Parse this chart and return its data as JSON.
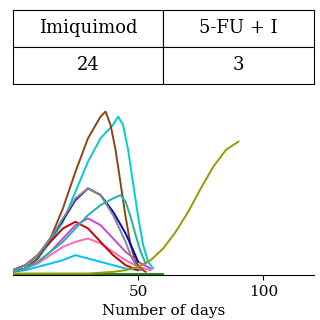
{
  "xlabel": "Number of days",
  "xlim": [
    0,
    120
  ],
  "ylim": [
    0,
    1.05
  ],
  "xticks": [
    50,
    100
  ],
  "lines": [
    {
      "color": "#FF8C00",
      "points": [
        [
          0,
          0.01
        ],
        [
          5,
          0.01
        ],
        [
          10,
          0.01
        ],
        [
          15,
          0.01
        ],
        [
          20,
          0.01
        ],
        [
          25,
          0.01
        ],
        [
          30,
          0.01
        ],
        [
          35,
          0.01
        ],
        [
          40,
          0.01
        ],
        [
          45,
          0.01
        ],
        [
          50,
          0.01
        ],
        [
          55,
          0.01
        ],
        [
          60,
          0.01
        ]
      ]
    },
    {
      "color": "#00BFFF",
      "points": [
        [
          0,
          0.02
        ],
        [
          5,
          0.03
        ],
        [
          10,
          0.05
        ],
        [
          15,
          0.07
        ],
        [
          20,
          0.09
        ],
        [
          25,
          0.12
        ],
        [
          30,
          0.1
        ],
        [
          35,
          0.08
        ],
        [
          40,
          0.06
        ],
        [
          45,
          0.04
        ],
        [
          50,
          0.03
        ]
      ]
    },
    {
      "color": "#00CED1",
      "points": [
        [
          0,
          0.02
        ],
        [
          5,
          0.04
        ],
        [
          10,
          0.1
        ],
        [
          15,
          0.2
        ],
        [
          20,
          0.32
        ],
        [
          25,
          0.5
        ],
        [
          30,
          0.68
        ],
        [
          35,
          0.82
        ],
        [
          40,
          0.9
        ],
        [
          42,
          0.95
        ],
        [
          44,
          0.9
        ],
        [
          46,
          0.75
        ],
        [
          48,
          0.55
        ],
        [
          50,
          0.35
        ],
        [
          52,
          0.18
        ],
        [
          54,
          0.08
        ],
        [
          56,
          0.04
        ]
      ]
    },
    {
      "color": "#FF69B4",
      "points": [
        [
          0,
          0.02
        ],
        [
          5,
          0.04
        ],
        [
          10,
          0.07
        ],
        [
          15,
          0.12
        ],
        [
          20,
          0.17
        ],
        [
          25,
          0.2
        ],
        [
          30,
          0.22
        ],
        [
          35,
          0.19
        ],
        [
          40,
          0.14
        ],
        [
          45,
          0.09
        ],
        [
          50,
          0.05
        ],
        [
          55,
          0.03
        ]
      ]
    },
    {
      "color": "#CC0000",
      "points": [
        [
          0,
          0.03
        ],
        [
          5,
          0.06
        ],
        [
          10,
          0.12
        ],
        [
          15,
          0.2
        ],
        [
          20,
          0.28
        ],
        [
          25,
          0.32
        ],
        [
          30,
          0.28
        ],
        [
          35,
          0.2
        ],
        [
          40,
          0.12
        ],
        [
          45,
          0.06
        ],
        [
          50,
          0.03
        ]
      ]
    },
    {
      "color": "#8B4513",
      "points": [
        [
          0,
          0.02
        ],
        [
          5,
          0.04
        ],
        [
          10,
          0.1
        ],
        [
          15,
          0.22
        ],
        [
          20,
          0.4
        ],
        [
          25,
          0.62
        ],
        [
          30,
          0.82
        ],
        [
          35,
          0.95
        ],
        [
          37,
          0.98
        ],
        [
          39,
          0.9
        ],
        [
          41,
          0.75
        ],
        [
          43,
          0.55
        ],
        [
          45,
          0.35
        ],
        [
          47,
          0.18
        ],
        [
          49,
          0.08
        ],
        [
          51,
          0.04
        ],
        [
          53,
          0.02
        ]
      ]
    },
    {
      "color": "#CC44CC",
      "points": [
        [
          0,
          0.02
        ],
        [
          5,
          0.04
        ],
        [
          10,
          0.08
        ],
        [
          15,
          0.14
        ],
        [
          20,
          0.22
        ],
        [
          25,
          0.3
        ],
        [
          30,
          0.34
        ],
        [
          35,
          0.3
        ],
        [
          40,
          0.22
        ],
        [
          45,
          0.14
        ],
        [
          50,
          0.08
        ],
        [
          55,
          0.04
        ]
      ]
    },
    {
      "color": "#0000DD",
      "points": [
        [
          0,
          0.03
        ],
        [
          5,
          0.06
        ],
        [
          10,
          0.12
        ],
        [
          15,
          0.22
        ],
        [
          20,
          0.33
        ],
        [
          25,
          0.45
        ],
        [
          30,
          0.52
        ],
        [
          35,
          0.48
        ],
        [
          40,
          0.38
        ],
        [
          45,
          0.25
        ],
        [
          48,
          0.15
        ],
        [
          50,
          0.08
        ]
      ]
    },
    {
      "color": "#888888",
      "points": [
        [
          0,
          0.03
        ],
        [
          5,
          0.06
        ],
        [
          10,
          0.12
        ],
        [
          15,
          0.22
        ],
        [
          20,
          0.34
        ],
        [
          25,
          0.46
        ],
        [
          30,
          0.52
        ],
        [
          35,
          0.48
        ],
        [
          40,
          0.36
        ],
        [
          45,
          0.2
        ],
        [
          47,
          0.12
        ],
        [
          49,
          0.06
        ],
        [
          51,
          0.03
        ]
      ]
    },
    {
      "color": "#228B22",
      "points": [
        [
          0,
          0.01
        ],
        [
          5,
          0.01
        ],
        [
          10,
          0.01
        ],
        [
          15,
          0.01
        ],
        [
          20,
          0.01
        ],
        [
          25,
          0.01
        ],
        [
          30,
          0.01
        ],
        [
          35,
          0.01
        ],
        [
          40,
          0.01
        ],
        [
          45,
          0.01
        ],
        [
          50,
          0.01
        ],
        [
          55,
          0.01
        ],
        [
          60,
          0.01
        ]
      ]
    },
    {
      "color": "#999900",
      "points": [
        [
          0,
          0.01
        ],
        [
          10,
          0.01
        ],
        [
          20,
          0.01
        ],
        [
          30,
          0.01
        ],
        [
          40,
          0.02
        ],
        [
          45,
          0.03
        ],
        [
          50,
          0.05
        ],
        [
          55,
          0.09
        ],
        [
          60,
          0.16
        ],
        [
          65,
          0.26
        ],
        [
          70,
          0.38
        ],
        [
          75,
          0.52
        ],
        [
          80,
          0.65
        ],
        [
          85,
          0.75
        ],
        [
          90,
          0.8
        ]
      ]
    },
    {
      "color": "#20B2AA",
      "points": [
        [
          0,
          0.02
        ],
        [
          5,
          0.04
        ],
        [
          10,
          0.08
        ],
        [
          15,
          0.14
        ],
        [
          20,
          0.2
        ],
        [
          25,
          0.28
        ],
        [
          30,
          0.36
        ],
        [
          35,
          0.42
        ],
        [
          40,
          0.46
        ],
        [
          43,
          0.48
        ],
        [
          45,
          0.44
        ],
        [
          47,
          0.35
        ],
        [
          49,
          0.24
        ],
        [
          51,
          0.14
        ],
        [
          53,
          0.07
        ]
      ]
    }
  ],
  "col_labels": [
    "Imiquimod",
    "5-FU + I"
  ],
  "row_values": [
    "24",
    "3"
  ],
  "table_fontsize": 13
}
